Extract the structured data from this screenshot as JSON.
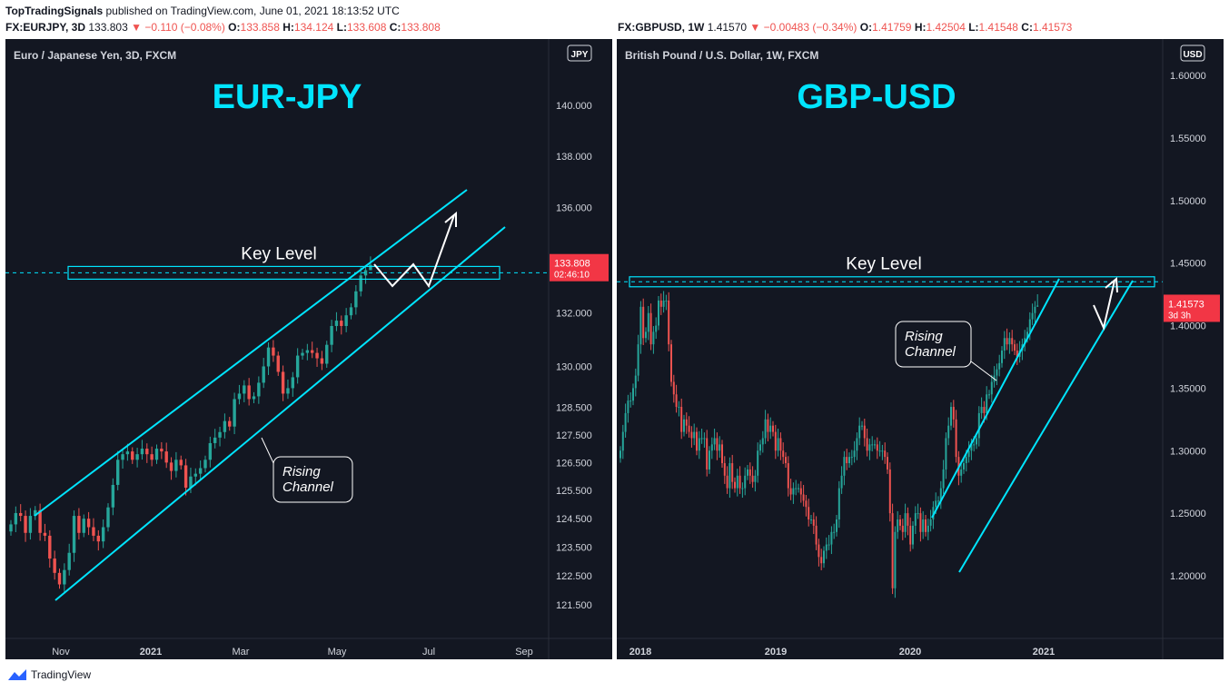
{
  "header": {
    "publisher": "TopTradingSignals",
    "published_text": "published on TradingView.com, June 01, 2021 18:13:52 UTC",
    "left_sym": "FX:EURJPY, 3D",
    "left_last": "133.803",
    "left_change": "▼ −0.110 (−0.08%)",
    "left_ohlc": [
      [
        "O:",
        "133.858"
      ],
      [
        "H:",
        "134.124"
      ],
      [
        "L:",
        "133.608"
      ],
      [
        "C:",
        "133.808"
      ]
    ],
    "right_sym": "FX:GBPUSD, 1W",
    "right_last": "1.41570",
    "right_change": "▼ −0.00483 (−0.34%)",
    "right_ohlc": [
      [
        "O:",
        "1.41759"
      ],
      [
        "H:",
        "1.42504"
      ],
      [
        "L:",
        "1.41548"
      ],
      [
        "C:",
        "1.41573"
      ]
    ]
  },
  "footer": {
    "brand": "TradingView"
  },
  "colors": {
    "bg": "#131722",
    "up": "#26a69a",
    "down": "#ef5350",
    "cyan": "#00e5ff",
    "arrow": "#ffffff"
  },
  "chart_data": [
    {
      "type": "candlestick",
      "subtitle": "Euro / Japanese Yen, 3D, FXCM",
      "title": "EUR-JPY",
      "currency_badge": "JPY",
      "price_axis_ticks": [
        "140.000",
        "138.000",
        "136.000",
        "132.000",
        "130.000",
        "128.500",
        "127.500",
        "126.500",
        "125.500",
        "124.500",
        "123.500",
        "122.500",
        "121.500"
      ],
      "time_axis_ticks": [
        "Nov",
        "2021",
        "Mar",
        "May",
        "Jul",
        "Sep"
      ],
      "price_axis_scale": "log",
      "last_price_label": "133.808",
      "countdown_label": "02:46:10",
      "key_level_label": "Key Level",
      "key_level_price": 133.5,
      "channel_label": "Rising Channel",
      "series": [
        {
          "name": "EURJPY",
          "closes": [
            124.3,
            124.7,
            124.6,
            124.0,
            124.6,
            124.8,
            124.0,
            123.9,
            123.1,
            122.6,
            122.2,
            122.7,
            123.3,
            124.6,
            124.0,
            124.5,
            124.2,
            123.9,
            123.7,
            124.2,
            124.9,
            125.7,
            126.6,
            126.8,
            126.9,
            126.6,
            126.8,
            127.0,
            126.8,
            126.6,
            127.0,
            126.9,
            126.5,
            126.2,
            126.6,
            126.4,
            125.6,
            126.0,
            126.1,
            126.3,
            126.6,
            127.2,
            127.4,
            127.6,
            128.0,
            127.8,
            128.8,
            129.0,
            129.3,
            128.8,
            128.9,
            129.4,
            130.0,
            130.7,
            130.4,
            129.8,
            129.0,
            129.2,
            129.6,
            130.4,
            130.5,
            130.6,
            130.5,
            130.3,
            130.1,
            130.8,
            131.5,
            131.7,
            131.5,
            131.9,
            132.2,
            132.8,
            133.4,
            133.6,
            133.8
          ],
          "final_high": 134.124,
          "final_low": 133.608
        }
      ]
    },
    {
      "type": "candlestick",
      "subtitle": "British Pound / U.S. Dollar, 1W, FXCM",
      "title": "GBP-USD",
      "currency_badge": "USD",
      "price_axis_ticks": [
        "1.60000",
        "1.55000",
        "1.50000",
        "1.45000",
        "1.40000",
        "1.35000",
        "1.30000",
        "1.25000",
        "1.20000"
      ],
      "time_axis_ticks": [
        "2018",
        "2019",
        "2020",
        "2021"
      ],
      "last_price_label": "1.41573",
      "countdown_label": "3d 3h",
      "key_level_label": "Key Level",
      "key_level_price": 1.435,
      "channel_label": "Rising Channel",
      "series": [
        {
          "name": "GBPUSD",
          "closes": [
            1.3,
            1.315,
            1.33,
            1.34,
            1.34,
            1.35,
            1.36,
            1.385,
            1.415,
            1.39,
            1.395,
            1.41,
            1.385,
            1.395,
            1.4,
            1.42,
            1.415,
            1.42,
            1.42,
            1.385,
            1.355,
            1.345,
            1.335,
            1.335,
            1.315,
            1.325,
            1.32,
            1.315,
            1.31,
            1.315,
            1.3,
            1.31,
            1.31,
            1.31,
            1.285,
            1.3,
            1.305,
            1.31,
            1.3,
            1.305,
            1.29,
            1.28,
            1.27,
            1.29,
            1.275,
            1.27,
            1.28,
            1.27,
            1.27,
            1.28,
            1.285,
            1.28,
            1.275,
            1.28,
            1.3,
            1.305,
            1.31,
            1.325,
            1.315,
            1.32,
            1.315,
            1.3,
            1.31,
            1.3,
            1.295,
            1.29,
            1.27,
            1.265,
            1.27,
            1.27,
            1.27,
            1.265,
            1.26,
            1.255,
            1.245,
            1.245,
            1.24,
            1.225,
            1.215,
            1.21,
            1.22,
            1.225,
            1.225,
            1.235,
            1.235,
            1.245,
            1.27,
            1.28,
            1.295,
            1.29,
            1.295,
            1.295,
            1.3,
            1.31,
            1.32,
            1.32,
            1.31,
            1.3,
            1.305,
            1.305,
            1.305,
            1.3,
            1.3,
            1.3,
            1.295,
            1.285,
            1.25,
            1.19,
            1.235,
            1.245,
            1.24,
            1.235,
            1.25,
            1.24,
            1.225,
            1.24,
            1.25,
            1.25,
            1.235,
            1.245,
            1.235,
            1.24,
            1.245,
            1.255,
            1.26,
            1.26,
            1.27,
            1.285,
            1.31,
            1.32,
            1.335,
            1.325,
            1.295,
            1.28,
            1.285,
            1.29,
            1.295,
            1.3,
            1.305,
            1.305,
            1.31,
            1.33,
            1.335,
            1.33,
            1.345,
            1.345,
            1.355,
            1.36,
            1.365,
            1.37,
            1.38,
            1.39,
            1.385,
            1.39,
            1.385,
            1.38,
            1.375,
            1.38,
            1.385,
            1.39,
            1.395,
            1.405,
            1.41,
            1.415,
            1.416
          ],
          "final_high": 1.42504,
          "final_low": 1.41548
        }
      ]
    }
  ]
}
